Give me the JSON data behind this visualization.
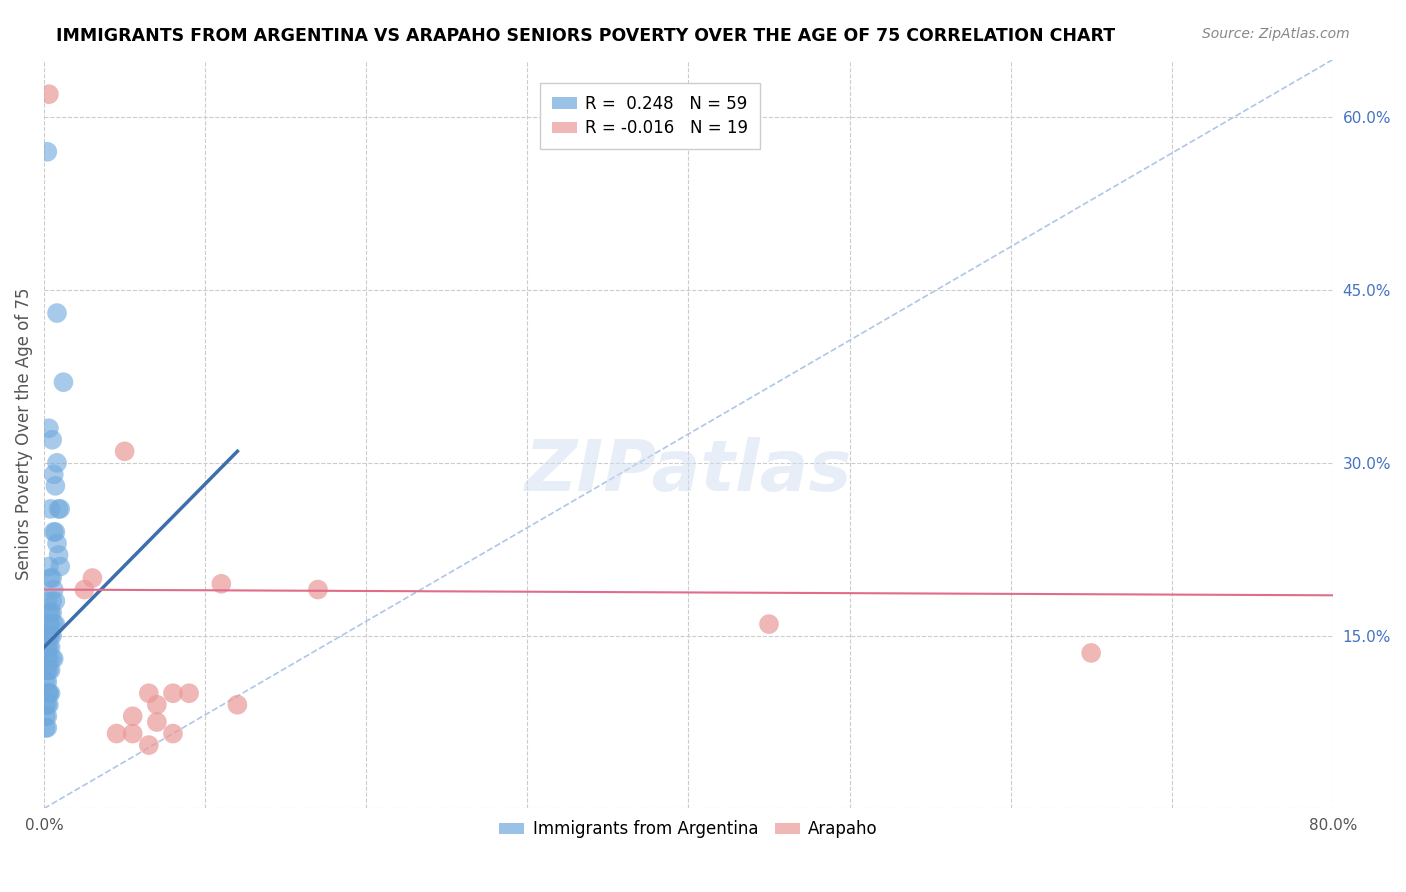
{
  "title": "IMMIGRANTS FROM ARGENTINA VS ARAPAHO SENIORS POVERTY OVER THE AGE OF 75 CORRELATION CHART",
  "source": "Source: ZipAtlas.com",
  "ylabel": "Seniors Poverty Over the Age of 75",
  "xlim": [
    0.0,
    0.8
  ],
  "ylim": [
    0.0,
    0.65
  ],
  "xtick_positions": [
    0.0,
    0.1,
    0.2,
    0.3,
    0.4,
    0.5,
    0.6,
    0.7,
    0.8
  ],
  "xticklabels": [
    "0.0%",
    "",
    "",
    "",
    "",
    "",
    "",
    "",
    "80.0%"
  ],
  "yticks_right": [
    0.15,
    0.3,
    0.45,
    0.6
  ],
  "ytick_labels_right": [
    "15.0%",
    "30.0%",
    "45.0%",
    "60.0%"
  ],
  "blue_color": "#6fa8dc",
  "pink_color": "#ea9999",
  "blue_line_color": "#3d6fad",
  "pink_line_color": "#e06c8a",
  "dashed_line_color": "#aec6e8",
  "legend_r_blue": "R =  0.248",
  "legend_n_blue": "N = 59",
  "legend_r_pink": "R = -0.016",
  "legend_n_pink": "N = 19",
  "watermark": "ZIPatlas",
  "blue_scatter_x": [
    0.002,
    0.008,
    0.012,
    0.003,
    0.005,
    0.006,
    0.007,
    0.009,
    0.004,
    0.01,
    0.006,
    0.007,
    0.008,
    0.009,
    0.01,
    0.003,
    0.004,
    0.005,
    0.006,
    0.007,
    0.002,
    0.003,
    0.004,
    0.005,
    0.006,
    0.007,
    0.003,
    0.004,
    0.002,
    0.003,
    0.004,
    0.005,
    0.001,
    0.002,
    0.003,
    0.004,
    0.005,
    0.006,
    0.002,
    0.003,
    0.001,
    0.002,
    0.003,
    0.004,
    0.001,
    0.002,
    0.003,
    0.002,
    0.003,
    0.004,
    0.001,
    0.002,
    0.003,
    0.001,
    0.002,
    0.001,
    0.002,
    0.005,
    0.008
  ],
  "blue_scatter_y": [
    0.57,
    0.43,
    0.37,
    0.33,
    0.32,
    0.29,
    0.28,
    0.26,
    0.26,
    0.26,
    0.24,
    0.24,
    0.23,
    0.22,
    0.21,
    0.21,
    0.2,
    0.2,
    0.19,
    0.18,
    0.18,
    0.17,
    0.17,
    0.17,
    0.16,
    0.16,
    0.16,
    0.16,
    0.15,
    0.15,
    0.15,
    0.15,
    0.14,
    0.14,
    0.14,
    0.14,
    0.13,
    0.13,
    0.13,
    0.13,
    0.12,
    0.12,
    0.12,
    0.12,
    0.11,
    0.11,
    0.1,
    0.1,
    0.1,
    0.1,
    0.09,
    0.09,
    0.09,
    0.08,
    0.08,
    0.07,
    0.07,
    0.18,
    0.3
  ],
  "pink_scatter_x": [
    0.003,
    0.65,
    0.45,
    0.17,
    0.11,
    0.08,
    0.065,
    0.09,
    0.12,
    0.07,
    0.055,
    0.07,
    0.08,
    0.045,
    0.055,
    0.065,
    0.03,
    0.05,
    0.025
  ],
  "pink_scatter_y": [
    0.62,
    0.135,
    0.16,
    0.19,
    0.195,
    0.1,
    0.1,
    0.1,
    0.09,
    0.09,
    0.08,
    0.075,
    0.065,
    0.065,
    0.065,
    0.055,
    0.2,
    0.31,
    0.19
  ],
  "blue_trend_x": [
    0.0,
    0.12
  ],
  "blue_trend_y": [
    0.14,
    0.31
  ],
  "pink_trend_x": [
    0.0,
    0.8
  ],
  "pink_trend_y": [
    0.19,
    0.185
  ],
  "dashed_line_x": [
    0.0,
    0.8
  ],
  "dashed_line_y": [
    0.0,
    0.65
  ]
}
